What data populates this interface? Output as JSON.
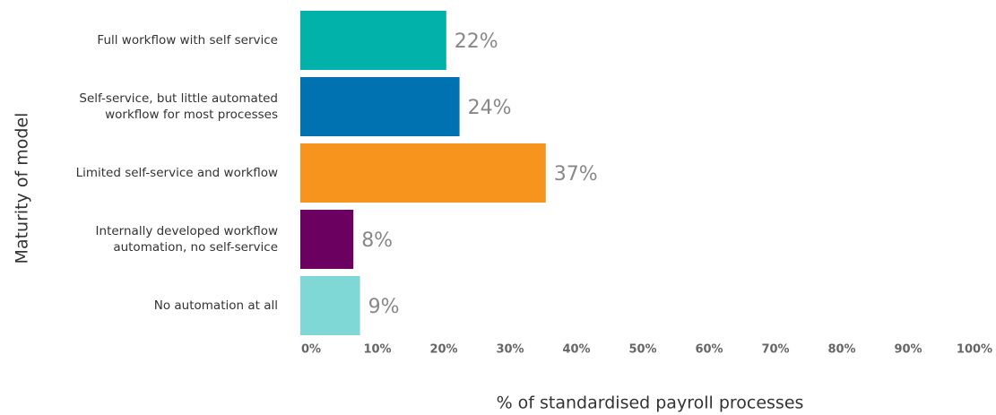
{
  "chart_data": {
    "type": "hbar",
    "x_label": "% of standardised payroll processes",
    "y_label": "Maturity of model",
    "categories": [
      "Full workflow with self service",
      "Self-service, but little automated\nworkflow for most processes",
      "Limited self-service and workflow",
      "Internally developed workflow\nautomation, no self-service",
      "No automation at all"
    ],
    "values": [
      22,
      24,
      37,
      8,
      9
    ],
    "value_labels": [
      "22%",
      "24%",
      "37%",
      "8%",
      "9%"
    ],
    "colors": [
      "#00b2a9",
      "#0072b1",
      "#f7941d",
      "#6b0061",
      "#7fd8d6"
    ],
    "xlim": [
      0,
      100
    ],
    "xticks": [
      {
        "value": 0,
        "label": "0%"
      },
      {
        "value": 10,
        "label": "10%"
      },
      {
        "value": 20,
        "label": "20%"
      },
      {
        "value": 30,
        "label": "30%"
      },
      {
        "value": 40,
        "label": "40%"
      },
      {
        "value": 50,
        "label": "50%"
      },
      {
        "value": 60,
        "label": "60%"
      },
      {
        "value": 70,
        "label": "70%"
      },
      {
        "value": 80,
        "label": "80%"
      },
      {
        "value": 90,
        "label": "90%"
      },
      {
        "value": 100,
        "label": "100%"
      }
    ],
    "grid": false
  }
}
